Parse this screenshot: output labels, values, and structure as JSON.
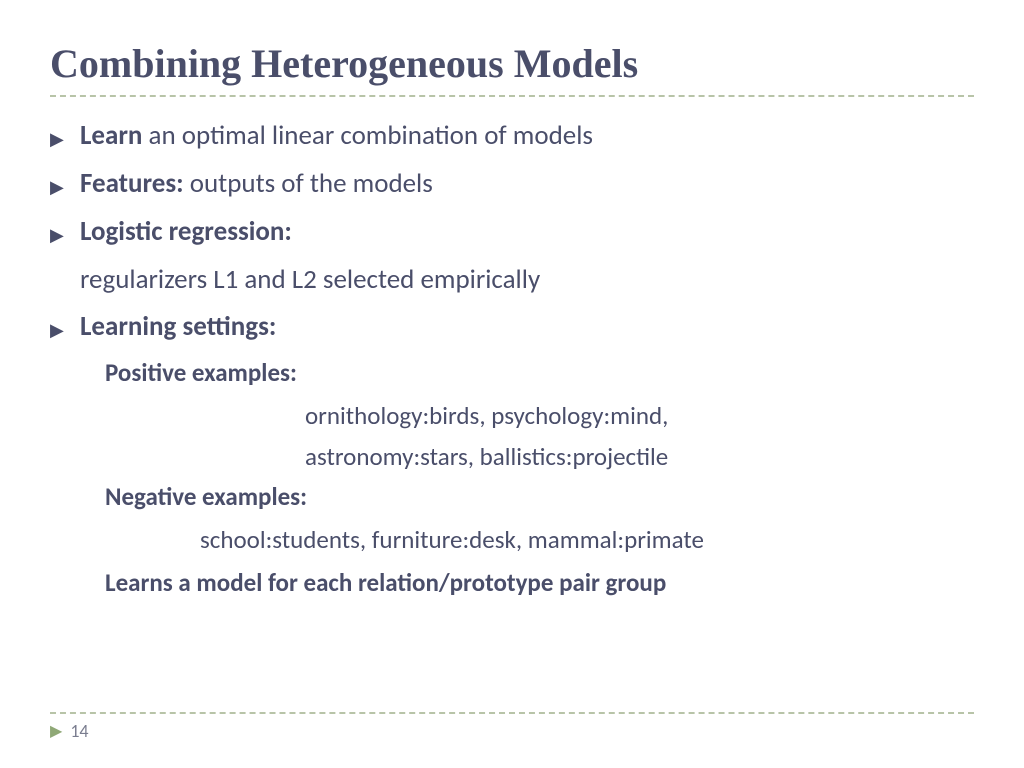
{
  "title": "Combining Heterogeneous Models",
  "bullets": {
    "b1_bold": "Learn",
    "b1_rest": " an optimal linear combination of models",
    "b2_bold": "Features: ",
    "b2_rest": " outputs of the models",
    "b3_bold": "Logistic regression:",
    "b3_sub": "regularizers L1 and L2 selected empirically",
    "b4_bold": "Learning settings:",
    "pos_label": "Positive examples:",
    "pos_line1": "ornithology:birds, psychology:mind,",
    "pos_line2": "astronomy:stars, ballistics:projectile",
    "neg_label": "Negative examples:",
    "neg_line1": "school:students,  furniture:desk, mammal:primate",
    "learns": "Learns a model for each relation/prototype pair group"
  },
  "page_number": "14",
  "colors": {
    "text": "#4a4e6a",
    "divider": "#b8c4a8",
    "arrow": "#8fa876",
    "bg": "#ffffff"
  }
}
